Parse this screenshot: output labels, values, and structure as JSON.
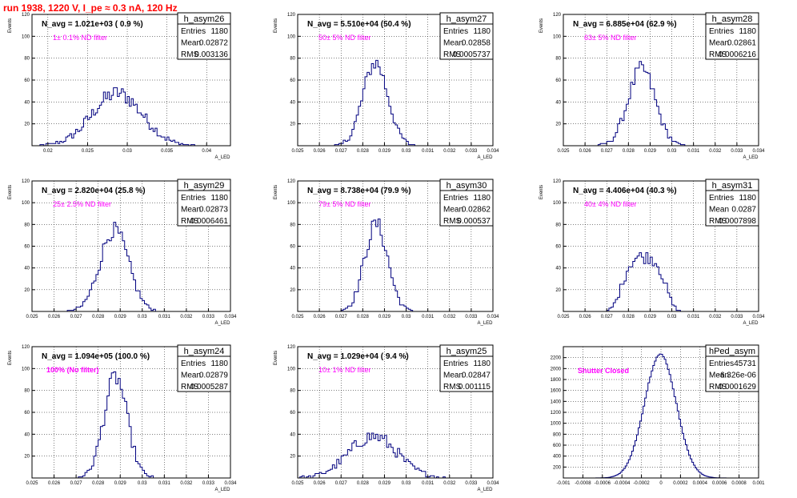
{
  "page_title": "run 1938,  1220 V, I_pe ≈ 0.3 nA, 120 Hz",
  "chart_data": [
    {
      "type": "histogram",
      "hist_name": "h_asym26",
      "ylabel": "Events",
      "xlabel": "A_LED",
      "xlim": [
        0.018,
        0.043
      ],
      "ylim": [
        0,
        120
      ],
      "xticks": [
        "0.02",
        "0.025",
        "0.03",
        "0.035",
        "0.04"
      ],
      "xtick_values": [
        0.02,
        0.025,
        0.03,
        0.035,
        0.04
      ],
      "yticks": [
        "20",
        "40",
        "60",
        "80",
        "100",
        "120"
      ],
      "ytick_values": [
        20,
        40,
        60,
        80,
        100,
        120
      ],
      "stats": {
        "entries_label": "Entries",
        "entries": "1180",
        "mean_label": "Mean",
        "mean": "0.02872",
        "rms_label": "RMS",
        "rms": "0.003136"
      },
      "navg": "N_avg = 1.021e+03 ( 0.9 %)",
      "filter": "1± 0.1% ND filter",
      "mean_value": 0.02872,
      "rms_value": 0.003136,
      "peak": 48,
      "mode": "noisy"
    },
    {
      "type": "histogram",
      "hist_name": "h_asym27",
      "ylabel": "Events",
      "xlabel": "A_LED",
      "xlim": [
        0.025,
        0.034
      ],
      "ylim": [
        0,
        120
      ],
      "xticks": [
        "0.025",
        "0.026",
        "0.027",
        "0.028",
        "0.029",
        "0.03",
        "0.031",
        "0.032",
        "0.033",
        "0.034"
      ],
      "xtick_values": [
        0.025,
        0.026,
        0.027,
        0.028,
        0.029,
        0.03,
        0.031,
        0.032,
        0.033,
        0.034
      ],
      "yticks": [
        "20",
        "40",
        "60",
        "80",
        "100",
        "120"
      ],
      "ytick_values": [
        20,
        40,
        60,
        80,
        100,
        120
      ],
      "stats": {
        "entries_label": "Entries",
        "entries": "1180",
        "mean_label": "Mean",
        "mean": "0.02858",
        "rms_label": "RMS",
        "rms": "0.0005737"
      },
      "navg": "N_avg = 5.510e+04 (50.4 %)",
      "filter": "50± 5% ND filter",
      "mean_value": 0.02858,
      "rms_value": 0.0005737,
      "peak": 76,
      "mode": "gauss"
    },
    {
      "type": "histogram",
      "hist_name": "h_asym28",
      "ylabel": "Events",
      "xlabel": "A_LED",
      "xlim": [
        0.025,
        0.034
      ],
      "ylim": [
        0,
        120
      ],
      "xticks": [
        "0.025",
        "0.026",
        "0.027",
        "0.028",
        "0.029",
        "0.03",
        "0.031",
        "0.032",
        "0.033",
        "0.034"
      ],
      "xtick_values": [
        0.025,
        0.026,
        0.027,
        0.028,
        0.029,
        0.03,
        0.031,
        0.032,
        0.033,
        0.034
      ],
      "yticks": [
        "20",
        "40",
        "60",
        "80",
        "100",
        "120"
      ],
      "ytick_values": [
        20,
        40,
        60,
        80,
        100,
        120
      ],
      "stats": {
        "entries_label": "Entries",
        "entries": "1180",
        "mean_label": "Mean",
        "mean": "0.02861",
        "rms_label": "RMS",
        "rms": "0.0006216"
      },
      "navg": "N_avg = 6.885e+04 (62.9 %)",
      "filter": "63± 5% ND filter",
      "mean_value": 0.02861,
      "rms_value": 0.0006216,
      "peak": 70,
      "mode": "gauss"
    },
    {
      "type": "histogram",
      "hist_name": "h_asym29",
      "ylabel": "Events",
      "xlabel": "A_LED",
      "xlim": [
        0.025,
        0.034
      ],
      "ylim": [
        0,
        120
      ],
      "xticks": [
        "0.025",
        "0.026",
        "0.027",
        "0.028",
        "0.029",
        "0.03",
        "0.031",
        "0.032",
        "0.033",
        "0.034"
      ],
      "xtick_values": [
        0.025,
        0.026,
        0.027,
        0.028,
        0.029,
        0.03,
        0.031,
        0.032,
        0.033,
        0.034
      ],
      "yticks": [
        "20",
        "40",
        "60",
        "80",
        "100",
        "120"
      ],
      "ytick_values": [
        20,
        40,
        60,
        80,
        100,
        120
      ],
      "stats": {
        "entries_label": "Entries",
        "entries": "1180",
        "mean_label": "Mean",
        "mean": "0.02873",
        "rms_label": "RMS",
        "rms": "0.0006461"
      },
      "navg": "N_avg = 2.820e+04 (25.8 %)",
      "filter": "25± 2.5% ND filter",
      "mean_value": 0.02873,
      "rms_value": 0.0006461,
      "peak": 75,
      "mode": "gauss"
    },
    {
      "type": "histogram",
      "hist_name": "h_asym30",
      "ylabel": "Events",
      "xlabel": "A_LED",
      "xlim": [
        0.025,
        0.034
      ],
      "ylim": [
        0,
        120
      ],
      "xticks": [
        "0.025",
        "0.026",
        "0.027",
        "0.028",
        "0.029",
        "0.03",
        "0.031",
        "0.032",
        "0.033",
        "0.034"
      ],
      "xtick_values": [
        0.025,
        0.026,
        0.027,
        0.028,
        0.029,
        0.03,
        0.031,
        0.032,
        0.033,
        0.034
      ],
      "yticks": [
        "20",
        "40",
        "60",
        "80",
        "100",
        "120"
      ],
      "ytick_values": [
        20,
        40,
        60,
        80,
        100,
        120
      ],
      "stats": {
        "entries_label": "Entries",
        "entries": "1180",
        "mean_label": "Mean",
        "mean": "0.02862",
        "rms_label": "RMS",
        "rms": "0.000537"
      },
      "navg": "N_avg = 8.738e+04 (79.9 %)",
      "filter": "79± 5% ND filter",
      "mean_value": 0.02862,
      "rms_value": 0.000537,
      "peak": 80,
      "mode": "gauss"
    },
    {
      "type": "histogram",
      "hist_name": "h_asym31",
      "ylabel": "Events",
      "xlabel": "A_LED",
      "xlim": [
        0.025,
        0.034
      ],
      "ylim": [
        0,
        120
      ],
      "xticks": [
        "0.025",
        "0.026",
        "0.027",
        "0.028",
        "0.029",
        "0.03",
        "0.031",
        "0.032",
        "0.033",
        "0.034"
      ],
      "xtick_values": [
        0.025,
        0.026,
        0.027,
        0.028,
        0.029,
        0.03,
        0.031,
        0.032,
        0.033,
        0.034
      ],
      "yticks": [
        "20",
        "40",
        "60",
        "80",
        "100",
        "120"
      ],
      "ytick_values": [
        20,
        40,
        60,
        80,
        100,
        120
      ],
      "stats": {
        "entries_label": "Entries",
        "entries": "1180",
        "mean_label": "Mean",
        "mean": "0.0287",
        "rms_label": "RMS",
        "rms": "0.0007898"
      },
      "navg": "N_avg = 4.406e+04 (40.3 %)",
      "filter": "40± 4% ND filter",
      "mean_value": 0.0287,
      "rms_value": 0.0007898,
      "peak": 50,
      "mode": "flat"
    },
    {
      "type": "histogram",
      "hist_name": "h_asym24",
      "ylabel": "Events",
      "xlabel": "A_LED",
      "xlim": [
        0.025,
        0.034
      ],
      "ylim": [
        0,
        120
      ],
      "xticks": [
        "0.025",
        "0.026",
        "0.027",
        "0.028",
        "0.029",
        "0.03",
        "0.031",
        "0.032",
        "0.033",
        "0.034"
      ],
      "xtick_values": [
        0.025,
        0.026,
        0.027,
        0.028,
        0.029,
        0.03,
        0.031,
        0.032,
        0.033,
        0.034
      ],
      "yticks": [
        "20",
        "40",
        "60",
        "80",
        "100",
        "120"
      ],
      "ytick_values": [
        20,
        40,
        60,
        80,
        100,
        120
      ],
      "stats": {
        "entries_label": "Entries",
        "entries": "1180",
        "mean_label": "Mean",
        "mean": "0.02879",
        "rms_label": "RMS",
        "rms": "0.0005287"
      },
      "navg": "N_avg = 1.094e+05 (100.0 %)",
      "filter": "100% (No filter)",
      "filter_bold": true,
      "mean_value": 0.02879,
      "rms_value": 0.0005287,
      "peak": 92,
      "mode": "gauss"
    },
    {
      "type": "histogram",
      "hist_name": "h_asym25",
      "ylabel": "Events",
      "xlabel": "A_LED",
      "xlim": [
        0.025,
        0.034
      ],
      "ylim": [
        0,
        120
      ],
      "xticks": [
        "0.025",
        "0.026",
        "0.027",
        "0.028",
        "0.029",
        "0.03",
        "0.031",
        "0.032",
        "0.033",
        "0.034"
      ],
      "xtick_values": [
        0.025,
        0.026,
        0.027,
        0.028,
        0.029,
        0.03,
        0.031,
        0.032,
        0.033,
        0.034
      ],
      "yticks": [
        "20",
        "40",
        "60",
        "80",
        "100",
        "120"
      ],
      "ytick_values": [
        20,
        40,
        60,
        80,
        100,
        120
      ],
      "stats": {
        "entries_label": "Entries",
        "entries": "1180",
        "mean_label": "Mean",
        "mean": "0.02847",
        "rms_label": "RMS",
        "rms": "0.001115"
      },
      "navg": "N_avg = 1.029e+04 ( 9.4 %)",
      "filter": "10± 1% ND filter",
      "mean_value": 0.02847,
      "rms_value": 0.001115,
      "peak": 38,
      "mode": "noisy"
    },
    {
      "type": "histogram",
      "hist_name": "hPed_asym",
      "ylabel": "",
      "xlabel": "",
      "xlim": [
        -0.001,
        0.001
      ],
      "ylim": [
        0,
        2400
      ],
      "xticks": [
        "-0.001",
        "-0.0008",
        "-0.0006",
        "-0.0004",
        "-0.0002",
        "0",
        "0.0002",
        "0.0004",
        "0.0006",
        "0.0008",
        "0.001"
      ],
      "xtick_values": [
        -0.001,
        -0.0008,
        -0.0006,
        -0.0004,
        -0.0002,
        0,
        0.0002,
        0.0004,
        0.0006,
        0.0008,
        0.001
      ],
      "yticks": [
        "200",
        "400",
        "600",
        "800",
        "1000",
        "1200",
        "1400",
        "1600",
        "1800",
        "2000",
        "2200"
      ],
      "ytick_values": [
        200,
        400,
        600,
        800,
        1000,
        1200,
        1400,
        1600,
        1800,
        2000,
        2200
      ],
      "stats": {
        "entries_label": "Entries",
        "entries": "45731",
        "mean_label": "Mean",
        "mean": "-6.326e-06",
        "rms_label": "RMS",
        "rms": "0.0001629"
      },
      "navg": "",
      "filter": "Shutter Closed",
      "filter_bold": true,
      "mean_value": -6.326e-06,
      "rms_value": 0.0001629,
      "peak": 2260,
      "mode": "smooth"
    }
  ]
}
